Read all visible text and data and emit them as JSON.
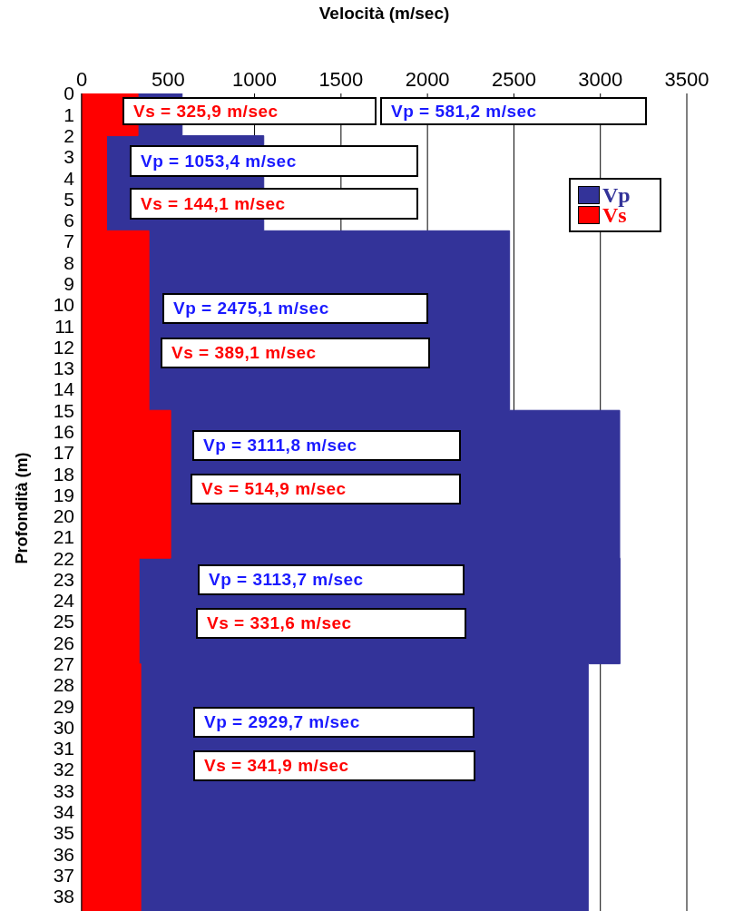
{
  "chart_data": {
    "type": "area",
    "orientation": "horizontal",
    "xlabel": "Velocità (m/sec)",
    "ylabel": "Profondità (m)",
    "x": [
      0,
      2,
      2,
      6.5,
      6.5,
      15,
      15,
      22,
      22,
      27,
      27,
      38.7
    ],
    "series": [
      {
        "name": "Vp",
        "color": "#333399",
        "values": [
          581.2,
          581.2,
          1053.4,
          1053.4,
          2475.1,
          2475.1,
          3111.8,
          3111.8,
          3113.7,
          3113.7,
          2929.7,
          2929.7
        ]
      },
      {
        "name": "Vs",
        "color": "#ff0000",
        "values": [
          325.9,
          325.9,
          144.1,
          144.1,
          389.1,
          389.1,
          514.9,
          514.9,
          331.6,
          331.6,
          341.9,
          341.9
        ]
      }
    ],
    "xlim": [
      0,
      3500
    ],
    "xticks": [
      0,
      500,
      1000,
      1500,
      2000,
      2500,
      3000,
      3500
    ],
    "ylim": [
      38.7,
      0
    ],
    "yticks": [
      0,
      1,
      2,
      3,
      4,
      5,
      6,
      7,
      8,
      9,
      10,
      11,
      12,
      13,
      14,
      15,
      16,
      17,
      18,
      19,
      20,
      21,
      22,
      23,
      24,
      25,
      26,
      27,
      28,
      29,
      30,
      31,
      32,
      33,
      34,
      35,
      36,
      37,
      38
    ],
    "grid": "x",
    "legend": "top right",
    "annotations": [
      "Vs = 325,9 m/sec",
      "Vp = 581,2 m/sec",
      "Vp = 1053,4 m/sec",
      "Vs = 144,1 m/sec",
      "Vp = 2475,1 m/sec",
      "Vs = 389,1 m/sec",
      "Vp = 3111,8 m/sec",
      "Vs = 514,9 m/sec",
      "Vp = 3113,7 m/sec",
      "Vs = 331,6 m/sec",
      "Vp = 2929,7 m/sec",
      "Vs = 341,9 m/sec"
    ]
  }
}
